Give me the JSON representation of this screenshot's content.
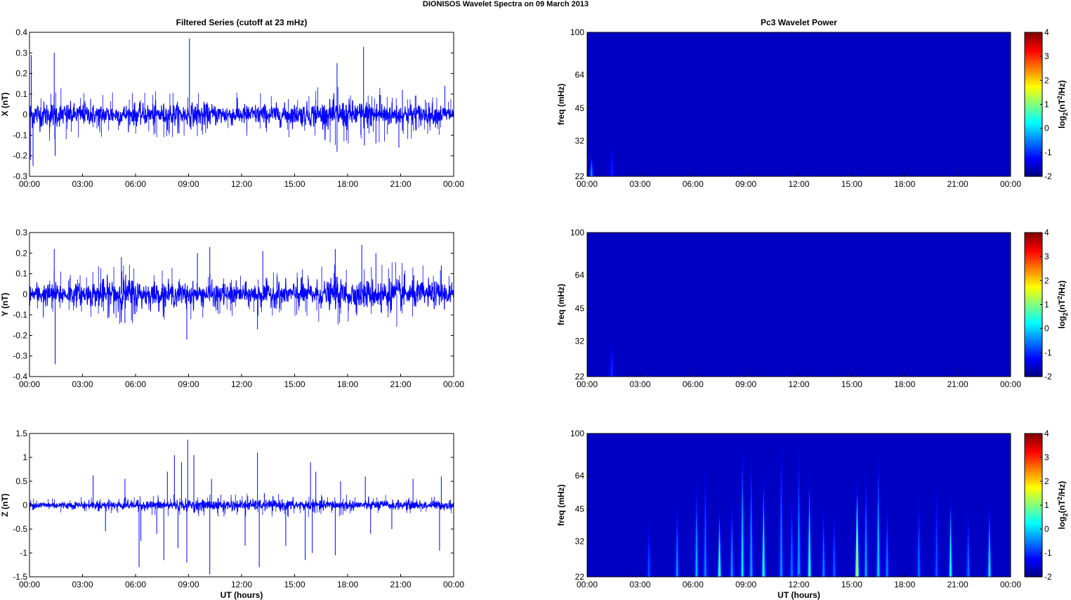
{
  "suptitle": "DIONISOS Wavelet Spectra on 09 March     2013",
  "chart_data": [
    {
      "type": "line",
      "title": "Filtered Series (cutoff at 23 mHz)",
      "xlabel": "",
      "ylabel": "X (nT)",
      "x_ticks": [
        "00:00",
        "03:00",
        "06:00",
        "09:00",
        "12:00",
        "15:00",
        "18:00",
        "21:00",
        "00:00"
      ],
      "xlim_hours": [
        0,
        24
      ],
      "ylim": [
        -0.3,
        0.4
      ],
      "y_ticks": [
        -0.3,
        -0.2,
        -0.1,
        0,
        0.1,
        0.2,
        0.3,
        0.4
      ],
      "series_color": "#0000ff",
      "noise_envelope": [
        {
          "hour": 0,
          "amp": 0.055
        },
        {
          "hour": 0.3,
          "amp": 0.06
        },
        {
          "hour": 3,
          "amp": 0.045
        },
        {
          "hour": 6,
          "amp": 0.045
        },
        {
          "hour": 9,
          "amp": 0.05
        },
        {
          "hour": 12,
          "amp": 0.045
        },
        {
          "hour": 15,
          "amp": 0.045
        },
        {
          "hour": 17.3,
          "amp": 0.06
        },
        {
          "hour": 18.5,
          "amp": 0.06
        },
        {
          "hour": 21,
          "amp": 0.05
        },
        {
          "hour": 24,
          "amp": 0.04
        }
      ],
      "spikes": [
        {
          "hour": 0.1,
          "value": 0.29
        },
        {
          "hour": 0.2,
          "value": -0.25
        },
        {
          "hour": 0.05,
          "value": -0.22
        },
        {
          "hour": 1.4,
          "value": 0.3
        },
        {
          "hour": 1.45,
          "value": -0.2
        },
        {
          "hour": 9.05,
          "value": 0.37
        },
        {
          "hour": 17.4,
          "value": 0.25
        },
        {
          "hour": 17.4,
          "value": -0.18
        },
        {
          "hour": 18.9,
          "value": 0.33
        },
        {
          "hour": 18.95,
          "value": -0.15
        },
        {
          "hour": 19.6,
          "value": -0.14
        },
        {
          "hour": 21.1,
          "value": 0.12
        },
        {
          "hour": 23.5,
          "value": 0.14
        },
        {
          "hour": 20.9,
          "value": -0.16
        }
      ]
    },
    {
      "type": "line",
      "title": "",
      "xlabel": "",
      "ylabel": "Y (nT)",
      "x_ticks": [
        "00:00",
        "03:00",
        "06:00",
        "09:00",
        "12:00",
        "15:00",
        "18:00",
        "21:00",
        "00:00"
      ],
      "xlim_hours": [
        0,
        24
      ],
      "ylim": [
        -0.4,
        0.3
      ],
      "y_ticks": [
        -0.4,
        -0.3,
        -0.2,
        -0.1,
        0,
        0.1,
        0.2,
        0.3
      ],
      "series_color": "#0000ff",
      "noise_envelope": [
        {
          "hour": 0,
          "amp": 0.05
        },
        {
          "hour": 3,
          "amp": 0.045
        },
        {
          "hour": 5.3,
          "amp": 0.08
        },
        {
          "hour": 6.5,
          "amp": 0.055
        },
        {
          "hour": 9,
          "amp": 0.05
        },
        {
          "hour": 12,
          "amp": 0.045
        },
        {
          "hour": 15,
          "amp": 0.05
        },
        {
          "hour": 17.5,
          "amp": 0.06
        },
        {
          "hour": 20.5,
          "amp": 0.065
        },
        {
          "hour": 24,
          "amp": 0.05
        }
      ],
      "spikes": [
        {
          "hour": 1.4,
          "value": 0.22
        },
        {
          "hour": 1.45,
          "value": -0.34
        },
        {
          "hour": 5.2,
          "value": 0.18
        },
        {
          "hour": 5.4,
          "value": -0.14
        },
        {
          "hour": 8.9,
          "value": -0.22
        },
        {
          "hour": 10.2,
          "value": 0.23
        },
        {
          "hour": 9.5,
          "value": 0.2
        },
        {
          "hour": 13.2,
          "value": 0.21
        },
        {
          "hour": 17.3,
          "value": 0.22
        },
        {
          "hour": 18.8,
          "value": 0.24
        },
        {
          "hour": 19.6,
          "value": 0.2
        },
        {
          "hour": 23.3,
          "value": 0.14
        },
        {
          "hour": 12.9,
          "value": -0.17
        }
      ]
    },
    {
      "type": "line",
      "title": "",
      "xlabel": "UT (hours)",
      "ylabel": "Z (nT)",
      "x_ticks": [
        "00:00",
        "03:00",
        "06:00",
        "09:00",
        "12:00",
        "15:00",
        "18:00",
        "21:00",
        "00:00"
      ],
      "xlim_hours": [
        0,
        24
      ],
      "ylim": [
        -1.5,
        1.5
      ],
      "y_ticks": [
        -1.5,
        -1,
        -0.5,
        0,
        0.5,
        1,
        1.5
      ],
      "series_color": "#0000ff",
      "noise_envelope": [
        {
          "hour": 0,
          "amp": 0.07
        },
        {
          "hour": 4,
          "amp": 0.07
        },
        {
          "hour": 9,
          "amp": 0.1
        },
        {
          "hour": 16,
          "amp": 0.1
        },
        {
          "hour": 24,
          "amp": 0.08
        }
      ],
      "spikes": [
        {
          "hour": 3.6,
          "value": 0.62
        },
        {
          "hour": 4.3,
          "value": -0.55
        },
        {
          "hour": 5.4,
          "value": 0.55
        },
        {
          "hour": 6.2,
          "value": -1.3
        },
        {
          "hour": 6.3,
          "value": -0.75
        },
        {
          "hour": 7.2,
          "value": -0.6
        },
        {
          "hour": 7.6,
          "value": -1.15
        },
        {
          "hour": 7.8,
          "value": 0.7
        },
        {
          "hour": 8.2,
          "value": 1.05
        },
        {
          "hour": 8.4,
          "value": -0.9
        },
        {
          "hour": 8.6,
          "value": 0.9
        },
        {
          "hour": 8.9,
          "value": -1.2
        },
        {
          "hour": 8.95,
          "value": 1.37
        },
        {
          "hour": 9.3,
          "value": 1.05
        },
        {
          "hour": 10.2,
          "value": -1.45
        },
        {
          "hour": 10.3,
          "value": 0.55
        },
        {
          "hour": 12.2,
          "value": -0.85
        },
        {
          "hour": 12.9,
          "value": 1.1
        },
        {
          "hour": 13.0,
          "value": -1.3
        },
        {
          "hour": 14.5,
          "value": -0.85
        },
        {
          "hour": 15.6,
          "value": -1.15
        },
        {
          "hour": 15.9,
          "value": 0.9
        },
        {
          "hour": 16.0,
          "value": -1.0
        },
        {
          "hour": 16.2,
          "value": 0.7
        },
        {
          "hour": 17.3,
          "value": -1.05
        },
        {
          "hour": 17.6,
          "value": 0.5
        },
        {
          "hour": 19.0,
          "value": 0.6
        },
        {
          "hour": 19.3,
          "value": -0.6
        },
        {
          "hour": 20.5,
          "value": -0.5
        },
        {
          "hour": 21.7,
          "value": 0.55
        },
        {
          "hour": 23.2,
          "value": -0.95
        },
        {
          "hour": 23.3,
          "value": 0.6
        }
      ]
    },
    {
      "type": "heatmap",
      "title": "Pc3 Wavelet Power",
      "xlabel": "",
      "ylabel": "freq (mHz)",
      "x_ticks": [
        "00:00",
        "03:00",
        "06:00",
        "09:00",
        "12:00",
        "15:00",
        "18:00",
        "21:00",
        "00:00"
      ],
      "xlim_hours": [
        0,
        24
      ],
      "y_ticks": [
        22,
        32,
        45,
        64,
        100
      ],
      "ylim_mHz": [
        22,
        100
      ],
      "y_scale": "log",
      "colorbar_label_parts": [
        "log",
        "2",
        "(nT",
        "2",
        "/Hz)"
      ],
      "colorbar_ticks": [
        -2,
        -1,
        0,
        1,
        2,
        3,
        4
      ],
      "clim": [
        -2,
        4
      ],
      "background_level": -1.6,
      "bursts": [
        {
          "hour": 0.25,
          "top_mHz": 28,
          "peak": -0.3
        },
        {
          "hour": 1.4,
          "top_mHz": 30,
          "peak": -1.0
        }
      ]
    },
    {
      "type": "heatmap",
      "title": "",
      "xlabel": "",
      "ylabel": "freq (mHz)",
      "x_ticks": [
        "00:00",
        "03:00",
        "06:00",
        "09:00",
        "12:00",
        "15:00",
        "18:00",
        "21:00",
        "00:00"
      ],
      "xlim_hours": [
        0,
        24
      ],
      "y_ticks": [
        22,
        32,
        45,
        64,
        100
      ],
      "ylim_mHz": [
        22,
        100
      ],
      "y_scale": "log",
      "colorbar_label_parts": [
        "log",
        "2",
        "(nT",
        "2",
        "/Hz)"
      ],
      "colorbar_ticks": [
        -2,
        -1,
        0,
        1,
        2,
        3,
        4
      ],
      "clim": [
        -2,
        4
      ],
      "background_level": -1.6,
      "bursts": [
        {
          "hour": 1.4,
          "top_mHz": 32,
          "peak": -0.9
        }
      ]
    },
    {
      "type": "heatmap",
      "title": "",
      "xlabel": "UT (hours)",
      "ylabel": "freq (mHz)",
      "x_ticks": [
        "00:00",
        "03:00",
        "06:00",
        "09:00",
        "12:00",
        "15:00",
        "18:00",
        "21:00",
        "00:00"
      ],
      "xlim_hours": [
        0,
        24
      ],
      "y_ticks": [
        22,
        32,
        45,
        64,
        100
      ],
      "ylim_mHz": [
        22,
        100
      ],
      "y_scale": "log",
      "colorbar_label_parts": [
        "log",
        "2",
        "(nT",
        "2",
        "/Hz)"
      ],
      "colorbar_ticks": [
        -2,
        -1,
        0,
        1,
        2,
        3,
        4
      ],
      "clim": [
        -2,
        4
      ],
      "background_level": -1.6,
      "bursts": [
        {
          "hour": 3.5,
          "top_mHz": 40,
          "peak": -0.7
        },
        {
          "hour": 5.1,
          "top_mHz": 48,
          "peak": -0.3
        },
        {
          "hour": 6.2,
          "top_mHz": 62,
          "peak": -0.1
        },
        {
          "hour": 6.7,
          "top_mHz": 72,
          "peak": -0.4
        },
        {
          "hour": 7.5,
          "top_mHz": 48,
          "peak": 0.9
        },
        {
          "hour": 8.2,
          "top_mHz": 52,
          "peak": -0.3
        },
        {
          "hour": 8.8,
          "top_mHz": 95,
          "peak": 0.2
        },
        {
          "hour": 9.3,
          "top_mHz": 85,
          "peak": -0.2
        },
        {
          "hour": 10.0,
          "top_mHz": 68,
          "peak": 0.6
        },
        {
          "hour": 11.0,
          "top_mHz": 95,
          "peak": -0.3
        },
        {
          "hour": 11.6,
          "top_mHz": 55,
          "peak": -0.5
        },
        {
          "hour": 12.0,
          "top_mHz": 90,
          "peak": -0.2
        },
        {
          "hour": 12.6,
          "top_mHz": 68,
          "peak": 0.8
        },
        {
          "hour": 13.4,
          "top_mHz": 48,
          "peak": -0.4
        },
        {
          "hour": 14.0,
          "top_mHz": 45,
          "peak": -0.6
        },
        {
          "hour": 15.3,
          "top_mHz": 65,
          "peak": 1.9
        },
        {
          "hour": 15.8,
          "top_mHz": 70,
          "peak": -0.2
        },
        {
          "hour": 16.5,
          "top_mHz": 85,
          "peak": 0.1
        },
        {
          "hour": 17.0,
          "top_mHz": 48,
          "peak": -0.4
        },
        {
          "hour": 18.8,
          "top_mHz": 52,
          "peak": -0.5
        },
        {
          "hour": 19.8,
          "top_mHz": 60,
          "peak": -0.7
        },
        {
          "hour": 20.6,
          "top_mHz": 55,
          "peak": 0.5
        },
        {
          "hour": 21.6,
          "top_mHz": 45,
          "peak": -0.5
        },
        {
          "hour": 22.8,
          "top_mHz": 50,
          "peak": 0.3
        }
      ]
    }
  ]
}
